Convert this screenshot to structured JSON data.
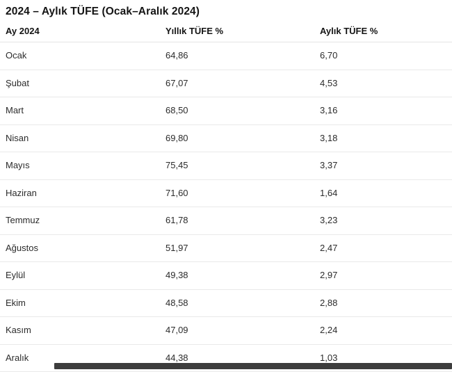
{
  "title": "2024 – Aylık TÜFE (Ocak–Aralık 2024)",
  "table": {
    "columns": {
      "month": "Ay 2024",
      "annual": "Yıllık TÜFE %",
      "monthly": "Aylık TÜFE %"
    },
    "rows": [
      {
        "month": "Ocak",
        "annual": "64,86",
        "monthly": "6,70"
      },
      {
        "month": "Şubat",
        "annual": "67,07",
        "monthly": "4,53"
      },
      {
        "month": "Mart",
        "annual": "68,50",
        "monthly": "3,16"
      },
      {
        "month": "Nisan",
        "annual": "69,80",
        "monthly": "3,18"
      },
      {
        "month": "Mayıs",
        "annual": "75,45",
        "monthly": "3,37"
      },
      {
        "month": "Haziran",
        "annual": "71,60",
        "monthly": "1,64"
      },
      {
        "month": "Temmuz",
        "annual": "61,78",
        "monthly": "3,23"
      },
      {
        "month": "Ağustos",
        "annual": "51,97",
        "monthly": "2,47"
      },
      {
        "month": "Eylül",
        "annual": "49,38",
        "monthly": "2,97"
      },
      {
        "month": "Ekim",
        "annual": "48,58",
        "monthly": "2,88"
      },
      {
        "month": "Kasım",
        "annual": "47,09",
        "monthly": "2,24"
      },
      {
        "month": "Aralık",
        "annual": "44,38",
        "monthly": "1,03"
      }
    ]
  },
  "chart_data": {
    "type": "table",
    "title": "2024 – Aylık TÜFE (Ocak–Aralık 2024)",
    "columns": [
      "Ay 2024",
      "Yıllık TÜFE %",
      "Aylık TÜFE %"
    ],
    "categories": [
      "Ocak",
      "Şubat",
      "Mart",
      "Nisan",
      "Mayıs",
      "Haziran",
      "Temmuz",
      "Ağustos",
      "Eylül",
      "Ekim",
      "Kasım",
      "Aralık"
    ],
    "series": [
      {
        "name": "Yıllık TÜFE %",
        "values": [
          64.86,
          67.07,
          68.5,
          69.8,
          75.45,
          71.6,
          61.78,
          51.97,
          49.38,
          48.58,
          47.09,
          44.38
        ]
      },
      {
        "name": "Aylık TÜFE %",
        "values": [
          6.7,
          4.53,
          3.16,
          3.18,
          3.37,
          1.64,
          3.23,
          2.47,
          2.97,
          2.88,
          2.24,
          1.03
        ]
      }
    ]
  },
  "colors": {
    "text": "#2b2b2b",
    "heading": "#141414",
    "row_separator": "#e9e9e9",
    "scrollbar_thumb": "#3d3d3d",
    "background": "#ffffff"
  }
}
